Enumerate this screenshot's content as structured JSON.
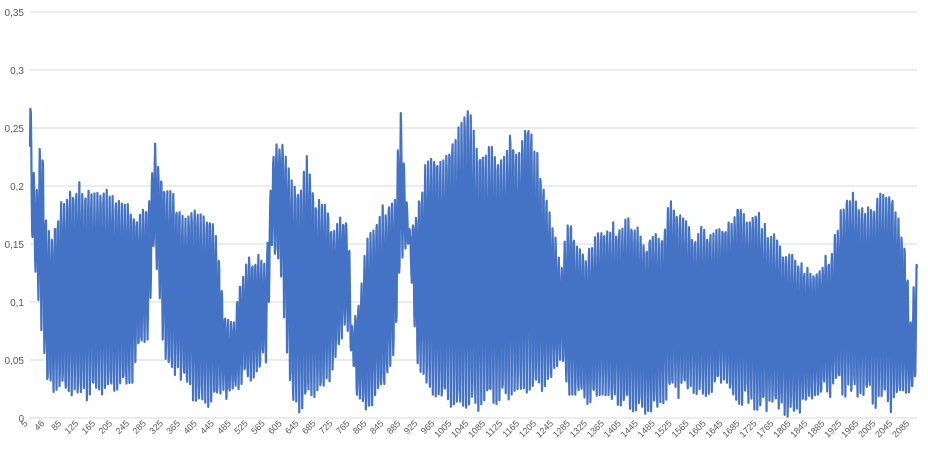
{
  "chart_data": {
    "type": "line",
    "title": "",
    "xlabel": "",
    "ylabel": "",
    "ylim": [
      0,
      0.35
    ],
    "grid": true,
    "legend": "none",
    "series_color": "#4472C4",
    "grid_color": "#D9D9D9",
    "y_ticks": [
      "0",
      "0,05",
      "0,1",
      "0,15",
      "0,2",
      "0,25",
      "0,3",
      "0,35"
    ],
    "x_ticks": [
      "5",
      "46",
      "85",
      "125",
      "165",
      "205",
      "245",
      "285",
      "325",
      "365",
      "405",
      "445",
      "485",
      "525",
      "565",
      "605",
      "645",
      "685",
      "725",
      "765",
      "805",
      "845",
      "885",
      "925",
      "965",
      "1005",
      "1045",
      "1085",
      "1125",
      "1165",
      "1205",
      "1245",
      "1285",
      "1325",
      "1365",
      "1405",
      "1445",
      "1485",
      "1525",
      "1565",
      "1605",
      "1645",
      "1685",
      "1725",
      "1765",
      "1805",
      "1845",
      "1885",
      "1925",
      "1965",
      "2005",
      "2045",
      "2085"
    ],
    "x_range": [
      5,
      2110
    ],
    "envelope": [
      [
        5,
        0.285
      ],
      [
        18,
        0.18
      ],
      [
        32,
        0.25
      ],
      [
        46,
        0.155
      ],
      [
        60,
        0.16
      ],
      [
        85,
        0.19
      ],
      [
        125,
        0.2
      ],
      [
        165,
        0.195
      ],
      [
        205,
        0.19
      ],
      [
        245,
        0.185
      ],
      [
        260,
        0.17
      ],
      [
        285,
        0.18
      ],
      [
        300,
        0.235
      ],
      [
        325,
        0.2
      ],
      [
        345,
        0.19
      ],
      [
        365,
        0.175
      ],
      [
        405,
        0.18
      ],
      [
        445,
        0.165
      ],
      [
        470,
        0.085
      ],
      [
        490,
        0.08
      ],
      [
        505,
        0.12
      ],
      [
        525,
        0.135
      ],
      [
        545,
        0.14
      ],
      [
        565,
        0.13
      ],
      [
        580,
        0.22
      ],
      [
        600,
        0.24
      ],
      [
        625,
        0.21
      ],
      [
        645,
        0.195
      ],
      [
        665,
        0.225
      ],
      [
        685,
        0.185
      ],
      [
        705,
        0.185
      ],
      [
        725,
        0.16
      ],
      [
        745,
        0.175
      ],
      [
        760,
        0.165
      ],
      [
        770,
        0.08
      ],
      [
        785,
        0.1
      ],
      [
        805,
        0.15
      ],
      [
        825,
        0.165
      ],
      [
        845,
        0.18
      ],
      [
        870,
        0.19
      ],
      [
        885,
        0.26
      ],
      [
        895,
        0.21
      ],
      [
        905,
        0.16
      ],
      [
        925,
        0.18
      ],
      [
        945,
        0.22
      ],
      [
        965,
        0.23
      ],
      [
        985,
        0.225
      ],
      [
        1005,
        0.24
      ],
      [
        1025,
        0.25
      ],
      [
        1045,
        0.27
      ],
      [
        1065,
        0.23
      ],
      [
        1085,
        0.23
      ],
      [
        1105,
        0.235
      ],
      [
        1125,
        0.225
      ],
      [
        1145,
        0.245
      ],
      [
        1165,
        0.23
      ],
      [
        1185,
        0.265
      ],
      [
        1205,
        0.23
      ],
      [
        1225,
        0.2
      ],
      [
        1245,
        0.165
      ],
      [
        1265,
        0.13
      ],
      [
        1285,
        0.175
      ],
      [
        1300,
        0.15
      ],
      [
        1325,
        0.14
      ],
      [
        1345,
        0.15
      ],
      [
        1365,
        0.165
      ],
      [
        1385,
        0.165
      ],
      [
        1405,
        0.16
      ],
      [
        1425,
        0.17
      ],
      [
        1445,
        0.165
      ],
      [
        1465,
        0.15
      ],
      [
        1485,
        0.16
      ],
      [
        1505,
        0.155
      ],
      [
        1525,
        0.19
      ],
      [
        1545,
        0.175
      ],
      [
        1565,
        0.165
      ],
      [
        1585,
        0.16
      ],
      [
        1605,
        0.16
      ],
      [
        1625,
        0.155
      ],
      [
        1645,
        0.165
      ],
      [
        1665,
        0.165
      ],
      [
        1685,
        0.19
      ],
      [
        1705,
        0.17
      ],
      [
        1725,
        0.18
      ],
      [
        1745,
        0.165
      ],
      [
        1765,
        0.155
      ],
      [
        1785,
        0.15
      ],
      [
        1805,
        0.14
      ],
      [
        1825,
        0.135
      ],
      [
        1845,
        0.13
      ],
      [
        1865,
        0.125
      ],
      [
        1885,
        0.135
      ],
      [
        1905,
        0.14
      ],
      [
        1925,
        0.17
      ],
      [
        1945,
        0.195
      ],
      [
        1965,
        0.185
      ],
      [
        1985,
        0.18
      ],
      [
        2005,
        0.185
      ],
      [
        2025,
        0.19
      ],
      [
        2045,
        0.195
      ],
      [
        2065,
        0.175
      ],
      [
        2085,
        0.14
      ],
      [
        2095,
        0.085
      ],
      [
        2110,
        0.135
      ]
    ],
    "floor": [
      [
        5,
        0.175
      ],
      [
        46,
        0.03
      ],
      [
        85,
        0.02
      ],
      [
        125,
        0.02
      ],
      [
        165,
        0.02
      ],
      [
        205,
        0.025
      ],
      [
        245,
        0.03
      ],
      [
        260,
        0.06
      ],
      [
        285,
        0.07
      ],
      [
        300,
        0.15
      ],
      [
        325,
        0.05
      ],
      [
        365,
        0.035
      ],
      [
        405,
        0.01
      ],
      [
        445,
        0.015
      ],
      [
        485,
        0.025
      ],
      [
        525,
        0.035
      ],
      [
        565,
        0.05
      ],
      [
        580,
        0.15
      ],
      [
        600,
        0.13
      ],
      [
        625,
        0.01
      ],
      [
        665,
        0.01
      ],
      [
        705,
        0.025
      ],
      [
        745,
        0.07
      ],
      [
        760,
        0.08
      ],
      [
        780,
        0.02
      ],
      [
        805,
        0.005
      ],
      [
        845,
        0.025
      ],
      [
        870,
        0.05
      ],
      [
        885,
        0.14
      ],
      [
        905,
        0.15
      ],
      [
        925,
        0.04
      ],
      [
        965,
        0.015
      ],
      [
        1005,
        0.01
      ],
      [
        1045,
        0.005
      ],
      [
        1085,
        0.01
      ],
      [
        1125,
        0.015
      ],
      [
        1165,
        0.02
      ],
      [
        1205,
        0.02
      ],
      [
        1245,
        0.035
      ],
      [
        1265,
        0.05
      ],
      [
        1285,
        0.02
      ],
      [
        1325,
        0.015
      ],
      [
        1365,
        0.02
      ],
      [
        1405,
        0.01
      ],
      [
        1445,
        0.01
      ],
      [
        1485,
        0.005
      ],
      [
        1525,
        0.02
      ],
      [
        1565,
        0.025
      ],
      [
        1605,
        0.02
      ],
      [
        1645,
        0.03
      ],
      [
        1685,
        0.015
      ],
      [
        1725,
        0.01
      ],
      [
        1765,
        0.01
      ],
      [
        1805,
        0.005
      ],
      [
        1845,
        0.01
      ],
      [
        1885,
        0.02
      ],
      [
        1925,
        0.025
      ],
      [
        1965,
        0.02
      ],
      [
        2005,
        0.015
      ],
      [
        2045,
        0.01
      ],
      [
        2085,
        0.02
      ],
      [
        2110,
        0.03
      ]
    ],
    "approx_period": 7.2
  }
}
